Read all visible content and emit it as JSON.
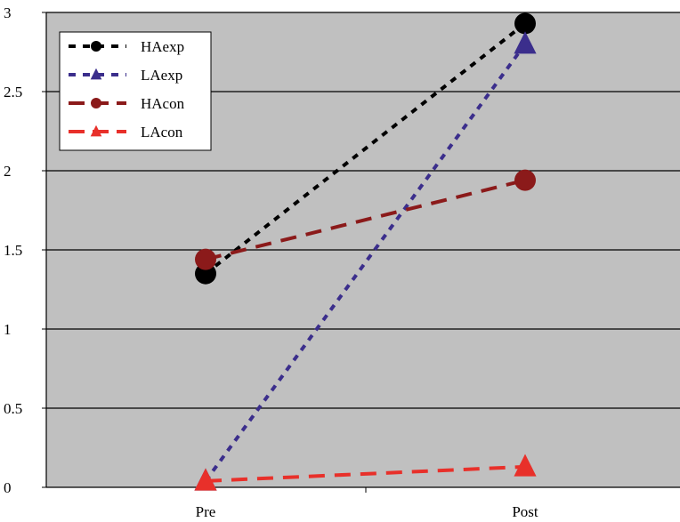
{
  "chart_data": {
    "type": "line",
    "title": "",
    "xlabel": "",
    "ylabel": "",
    "categories": [
      "Pre",
      "Post"
    ],
    "ylim": [
      0,
      3
    ],
    "yticks": [
      "0",
      "0.5",
      "1",
      "1.5",
      "2",
      "2.5",
      "3"
    ],
    "grid": true,
    "legend_position": "top-left",
    "plot_background": "#c0c0c0",
    "series": [
      {
        "name": "HAexp",
        "values": [
          1.35,
          2.93
        ],
        "color": "#000000",
        "marker": "circle",
        "line": "dotted"
      },
      {
        "name": "LAexp",
        "values": [
          0.04,
          2.8
        ],
        "color": "#3b2e8c",
        "marker": "triangle",
        "line": "dotted"
      },
      {
        "name": "HAcon",
        "values": [
          1.44,
          1.94
        ],
        "color": "#8b1a1a",
        "marker": "circle",
        "line": "dashed"
      },
      {
        "name": "LAcon",
        "values": [
          0.04,
          0.13
        ],
        "color": "#e8302a",
        "marker": "triangle",
        "line": "dashed"
      }
    ]
  }
}
